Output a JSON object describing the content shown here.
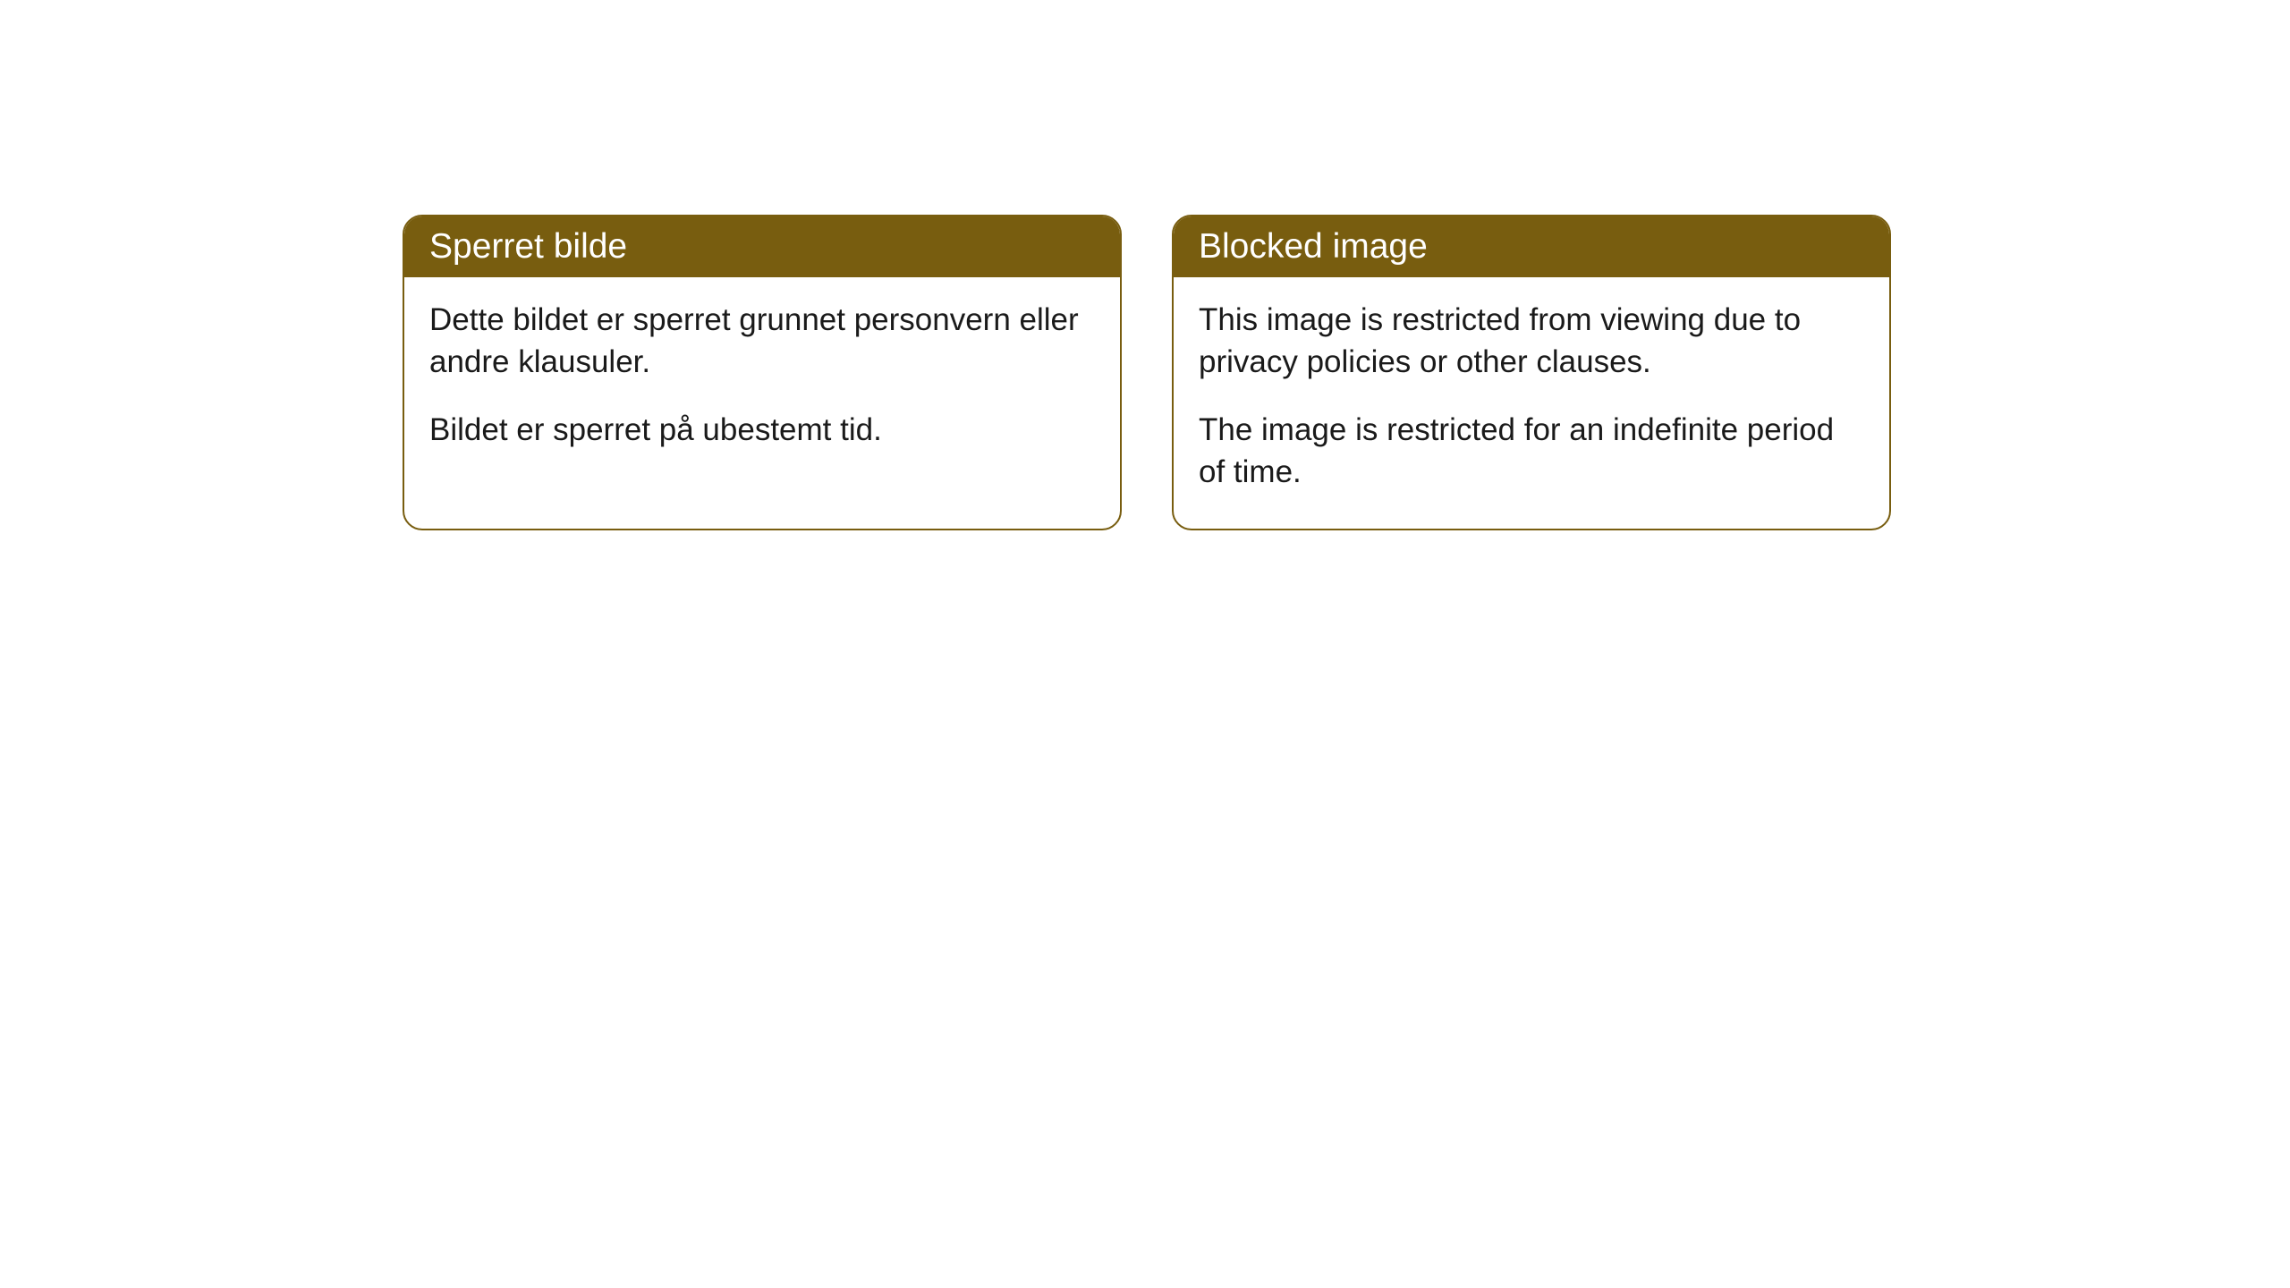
{
  "cards": [
    {
      "title": "Sperret bilde",
      "paragraph1": "Dette bildet er sperret grunnet personvern eller andre klausuler.",
      "paragraph2": "Bildet er sperret på ubestemt tid."
    },
    {
      "title": "Blocked image",
      "paragraph1": "This image is restricted from viewing due to privacy policies or other clauses.",
      "paragraph2": "The image is restricted for an indefinite period of time."
    }
  ],
  "styling": {
    "header_background": "#785d0f",
    "header_text_color": "#ffffff",
    "border_color": "#785d0f",
    "body_background": "#ffffff",
    "body_text_color": "#1a1a1a",
    "border_radius": 22,
    "header_fontsize": 39,
    "body_fontsize": 35
  }
}
